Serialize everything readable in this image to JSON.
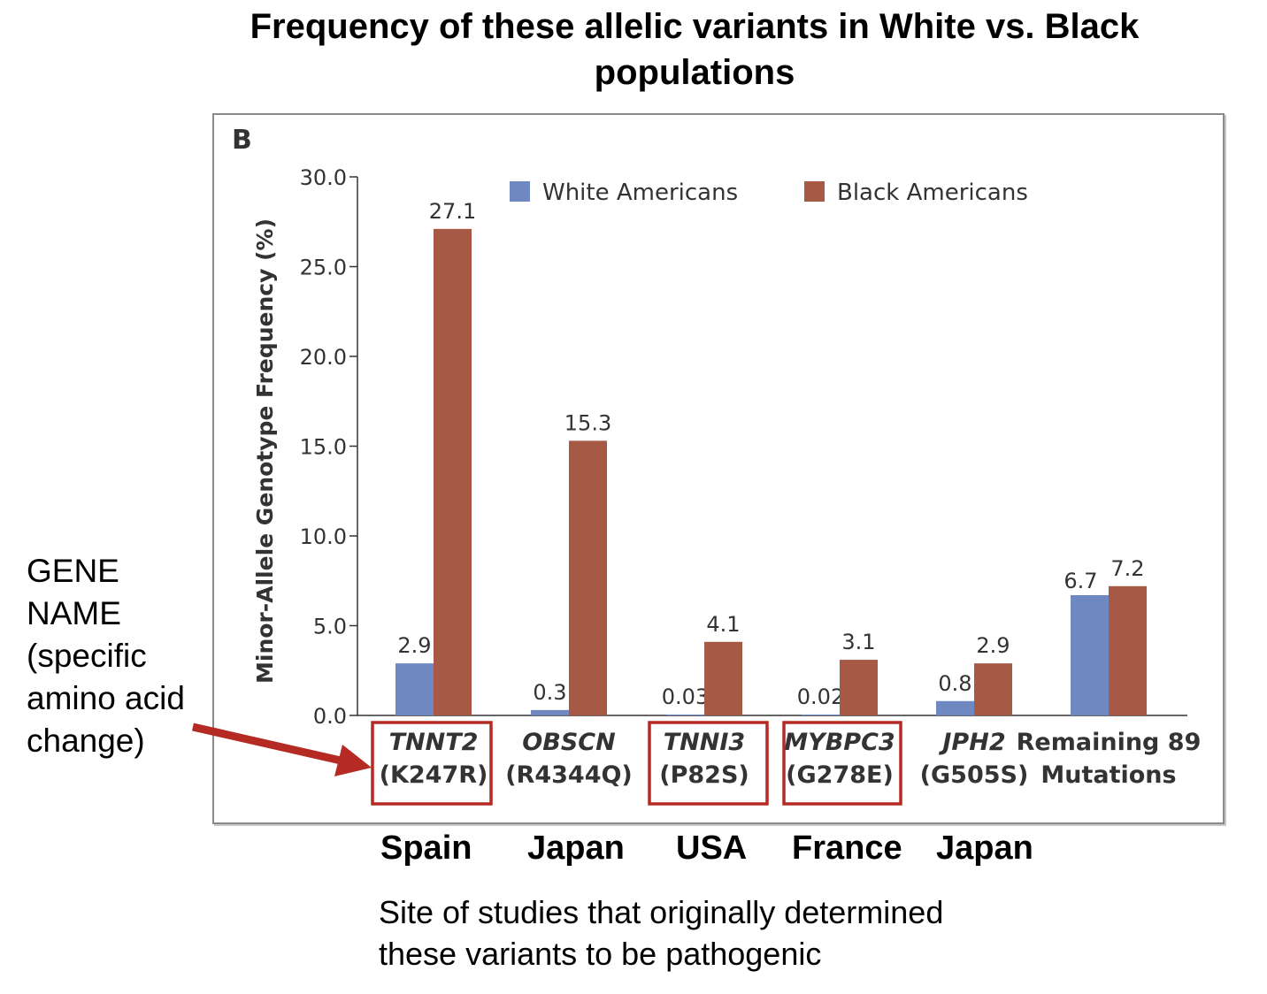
{
  "title": "Frequency of these allelic variants in White vs. Black populations",
  "annotation": {
    "lines": [
      "GENE",
      "NAME",
      "(specific",
      "amino acid",
      "change)"
    ],
    "arrow_color": "#b52a22"
  },
  "sites": [
    "Spain",
    "Japan",
    "USA",
    "France",
    "Japan"
  ],
  "footnote": {
    "lines": [
      "Site of studies that originally determined",
      "these variants to be pathogenic"
    ]
  },
  "highlight_color": "#b52a22",
  "chart_data": {
    "type": "bar",
    "panel_label": "B",
    "ylabel": "Minor-Allele Genotype Frequency (%)",
    "ylim": [
      0,
      30
    ],
    "yticks": [
      "0.0",
      "5.0",
      "10.0",
      "15.0",
      "20.0",
      "25.0",
      "30.0"
    ],
    "grid": false,
    "legend_position": "top",
    "categories": [
      {
        "gene": "TNNT2",
        "change": "(K247R)",
        "italic": true,
        "highlighted": true
      },
      {
        "gene": "OBSCN",
        "change": "(R4344Q)",
        "italic": true,
        "highlighted": false
      },
      {
        "gene": "TNNI3",
        "change": "(P82S)",
        "italic": true,
        "highlighted": true
      },
      {
        "gene": "MYBPC3",
        "change": "(G278E)",
        "italic": true,
        "highlighted": true
      },
      {
        "gene": "JPH2",
        "change": "(G505S)",
        "italic": true,
        "highlighted": false
      },
      {
        "gene": "Remaining 89",
        "change": "Mutations",
        "italic": false,
        "highlighted": false
      }
    ],
    "series": [
      {
        "name": "White Americans",
        "color": "#7088c2",
        "values": [
          2.9,
          0.3,
          0.03,
          0.02,
          0.8,
          6.7
        ],
        "labels": [
          "2.9",
          "0.3",
          "0.03",
          "0.02",
          "0.8",
          "6.7"
        ]
      },
      {
        "name": "Black Americans",
        "color": "#a65a45",
        "values": [
          27.1,
          15.3,
          4.1,
          3.1,
          2.9,
          7.2
        ],
        "labels": [
          "27.1",
          "15.3",
          "4.1",
          "3.1",
          "2.9",
          "7.2"
        ]
      }
    ]
  }
}
